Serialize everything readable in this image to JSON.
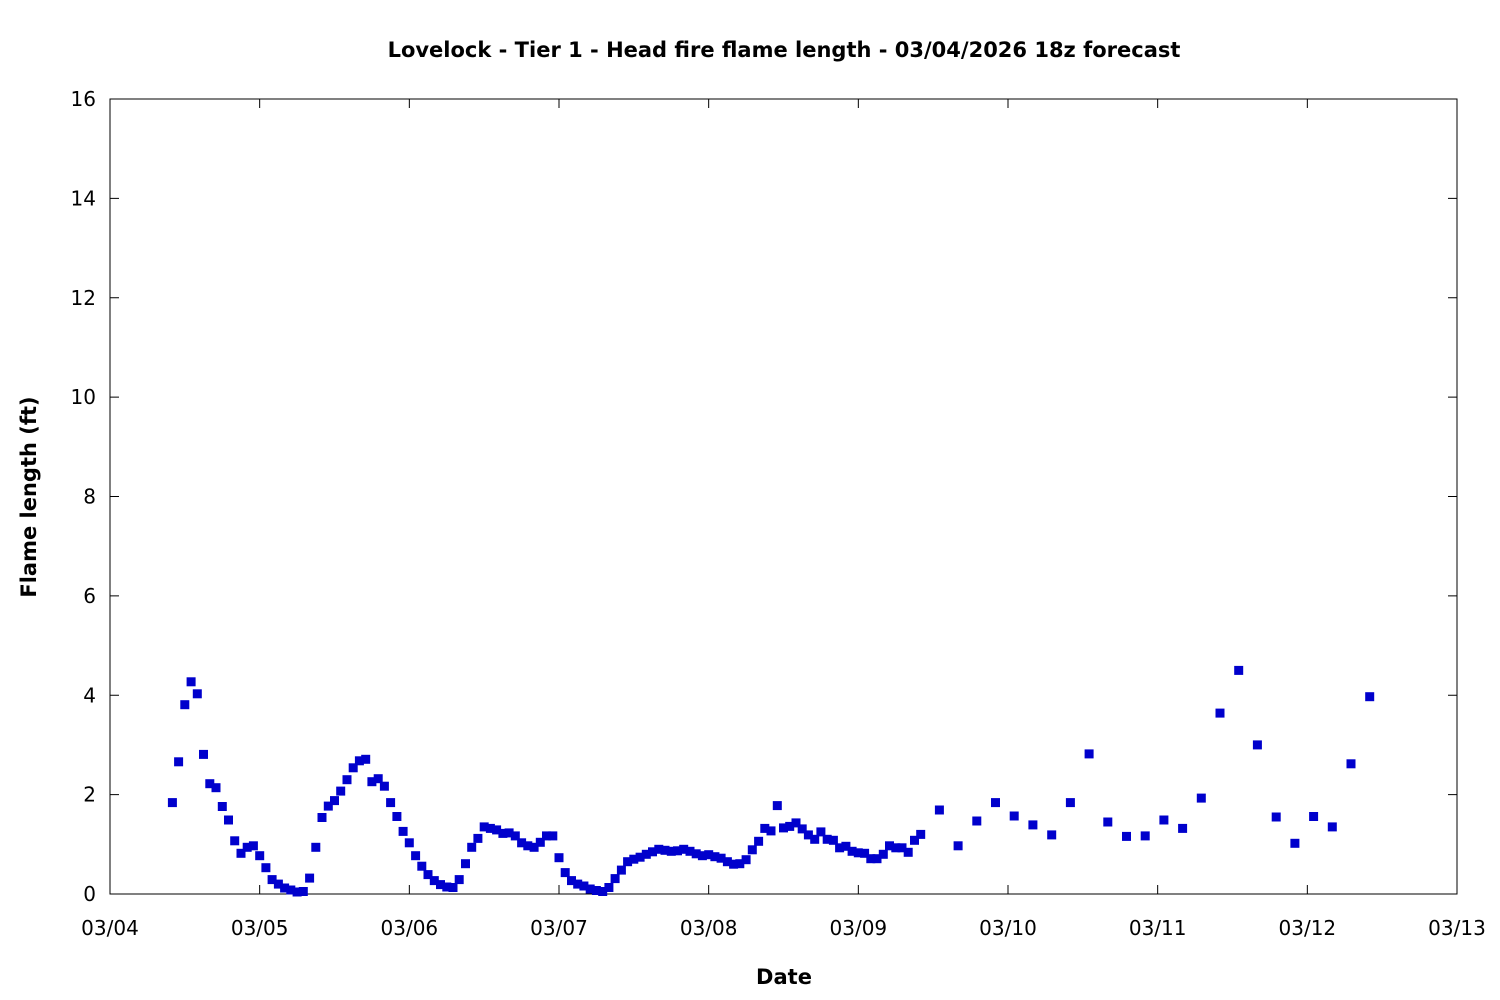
{
  "chart_data": {
    "type": "scatter",
    "title": "Lovelock - Tier 1 - Head fire flame length - 03/04/2026 18z forecast",
    "xlabel": "Date",
    "ylabel": "Flame length (ft)",
    "xlim": [
      "2026-03-04T00:00",
      "2026-03-13T00:00"
    ],
    "ylim": [
      0,
      16
    ],
    "x_tick_labels": [
      "03/04",
      "03/05",
      "03/06",
      "03/07",
      "03/08",
      "03/09",
      "03/10",
      "03/11",
      "03/12",
      "03/13"
    ],
    "y_tick_labels": [
      "0",
      "2",
      "4",
      "6",
      "8",
      "10",
      "12",
      "14",
      "16"
    ],
    "grid": false,
    "legend": "none",
    "marker_color": "#0000cc",
    "x": [
      "2026-03-04T10:00",
      "2026-03-04T11:00",
      "2026-03-04T12:00",
      "2026-03-04T13:00",
      "2026-03-04T14:00",
      "2026-03-04T15:00",
      "2026-03-04T16:00",
      "2026-03-04T17:00",
      "2026-03-04T18:00",
      "2026-03-04T19:00",
      "2026-03-04T20:00",
      "2026-03-04T21:00",
      "2026-03-04T22:00",
      "2026-03-04T23:00",
      "2026-03-05T00:00",
      "2026-03-05T01:00",
      "2026-03-05T02:00",
      "2026-03-05T03:00",
      "2026-03-05T04:00",
      "2026-03-05T05:00",
      "2026-03-05T06:00",
      "2026-03-05T07:00",
      "2026-03-05T08:00",
      "2026-03-05T09:00",
      "2026-03-05T10:00",
      "2026-03-05T11:00",
      "2026-03-05T12:00",
      "2026-03-05T13:00",
      "2026-03-05T14:00",
      "2026-03-05T15:00",
      "2026-03-05T16:00",
      "2026-03-05T17:00",
      "2026-03-05T18:00",
      "2026-03-05T19:00",
      "2026-03-05T20:00",
      "2026-03-05T21:00",
      "2026-03-05T22:00",
      "2026-03-05T23:00",
      "2026-03-06T00:00",
      "2026-03-06T01:00",
      "2026-03-06T02:00",
      "2026-03-06T03:00",
      "2026-03-06T04:00",
      "2026-03-06T05:00",
      "2026-03-06T06:00",
      "2026-03-06T07:00",
      "2026-03-06T08:00",
      "2026-03-06T09:00",
      "2026-03-06T10:00",
      "2026-03-06T11:00",
      "2026-03-06T12:00",
      "2026-03-06T13:00",
      "2026-03-06T14:00",
      "2026-03-06T15:00",
      "2026-03-06T16:00",
      "2026-03-06T17:00",
      "2026-03-06T18:00",
      "2026-03-06T19:00",
      "2026-03-06T20:00",
      "2026-03-06T21:00",
      "2026-03-06T22:00",
      "2026-03-06T23:00",
      "2026-03-07T00:00",
      "2026-03-07T01:00",
      "2026-03-07T02:00",
      "2026-03-07T03:00",
      "2026-03-07T04:00",
      "2026-03-07T05:00",
      "2026-03-07T06:00",
      "2026-03-07T07:00",
      "2026-03-07T08:00",
      "2026-03-07T09:00",
      "2026-03-07T10:00",
      "2026-03-07T11:00",
      "2026-03-07T12:00",
      "2026-03-07T13:00",
      "2026-03-07T14:00",
      "2026-03-07T15:00",
      "2026-03-07T16:00",
      "2026-03-07T17:00",
      "2026-03-07T18:00",
      "2026-03-07T19:00",
      "2026-03-07T20:00",
      "2026-03-07T21:00",
      "2026-03-07T22:00",
      "2026-03-07T23:00",
      "2026-03-08T00:00",
      "2026-03-08T01:00",
      "2026-03-08T02:00",
      "2026-03-08T03:00",
      "2026-03-08T04:00",
      "2026-03-08T05:00",
      "2026-03-08T06:00",
      "2026-03-08T07:00",
      "2026-03-08T08:00",
      "2026-03-08T09:00",
      "2026-03-08T10:00",
      "2026-03-08T11:00",
      "2026-03-08T12:00",
      "2026-03-08T13:00",
      "2026-03-08T14:00",
      "2026-03-08T15:00",
      "2026-03-08T16:00",
      "2026-03-08T17:00",
      "2026-03-08T18:00",
      "2026-03-08T19:00",
      "2026-03-08T20:00",
      "2026-03-08T21:00",
      "2026-03-08T22:00",
      "2026-03-08T23:00",
      "2026-03-09T00:00",
      "2026-03-09T01:00",
      "2026-03-09T02:00",
      "2026-03-09T03:00",
      "2026-03-09T04:00",
      "2026-03-09T05:00",
      "2026-03-09T06:00",
      "2026-03-09T07:00",
      "2026-03-09T08:00",
      "2026-03-09T09:00",
      "2026-03-09T10:00",
      "2026-03-09T13:00",
      "2026-03-09T16:00",
      "2026-03-09T19:00",
      "2026-03-09T22:00",
      "2026-03-10T01:00",
      "2026-03-10T04:00",
      "2026-03-10T07:00",
      "2026-03-10T10:00",
      "2026-03-10T13:00",
      "2026-03-10T16:00",
      "2026-03-10T19:00",
      "2026-03-10T22:00",
      "2026-03-11T01:00",
      "2026-03-11T04:00",
      "2026-03-11T07:00",
      "2026-03-11T10:00",
      "2026-03-11T13:00",
      "2026-03-11T16:00",
      "2026-03-11T19:00",
      "2026-03-11T22:00",
      "2026-03-12T01:00",
      "2026-03-12T04:00",
      "2026-03-12T07:00",
      "2026-03-12T10:00"
    ],
    "y": [
      1.84,
      2.66,
      3.81,
      4.27,
      4.03,
      2.81,
      2.22,
      2.14,
      1.76,
      1.49,
      1.07,
      0.82,
      0.94,
      0.97,
      0.77,
      0.53,
      0.29,
      0.2,
      0.12,
      0.08,
      0.04,
      0.05,
      0.32,
      0.94,
      1.54,
      1.77,
      1.88,
      2.07,
      2.3,
      2.54,
      2.68,
      2.71,
      2.26,
      2.32,
      2.17,
      1.84,
      1.56,
      1.26,
      1.03,
      0.77,
      0.56,
      0.39,
      0.27,
      0.19,
      0.14,
      0.13,
      0.29,
      0.61,
      0.94,
      1.12,
      1.35,
      1.32,
      1.29,
      1.22,
      1.23,
      1.17,
      1.03,
      0.97,
      0.94,
      1.04,
      1.17,
      1.17,
      0.73,
      0.43,
      0.27,
      0.2,
      0.16,
      0.1,
      0.07,
      0.05,
      0.13,
      0.31,
      0.48,
      0.65,
      0.7,
      0.74,
      0.8,
      0.85,
      0.9,
      0.88,
      0.86,
      0.87,
      0.9,
      0.86,
      0.81,
      0.77,
      0.79,
      0.75,
      0.72,
      0.65,
      0.6,
      0.61,
      0.69,
      0.89,
      1.06,
      1.32,
      1.27,
      1.78,
      1.33,
      1.36,
      1.43,
      1.31,
      1.19,
      1.1,
      1.25,
      1.1,
      1.08,
      0.93,
      0.96,
      0.86,
      0.83,
      0.82,
      0.71,
      0.71,
      0.8,
      0.97,
      0.93,
      0.93,
      0.84,
      1.08,
      1.2,
      1.69,
      0.97,
      1.47,
      1.84,
      1.57,
      1.39,
      1.19,
      1.84,
      2.82,
      1.45,
      1.16,
      1.17,
      1.49,
      1.32,
      1.93,
      3.64,
      4.5,
      3.0,
      1.55,
      1.02,
      1.56,
      1.35,
      2.62,
      3.97
    ]
  }
}
